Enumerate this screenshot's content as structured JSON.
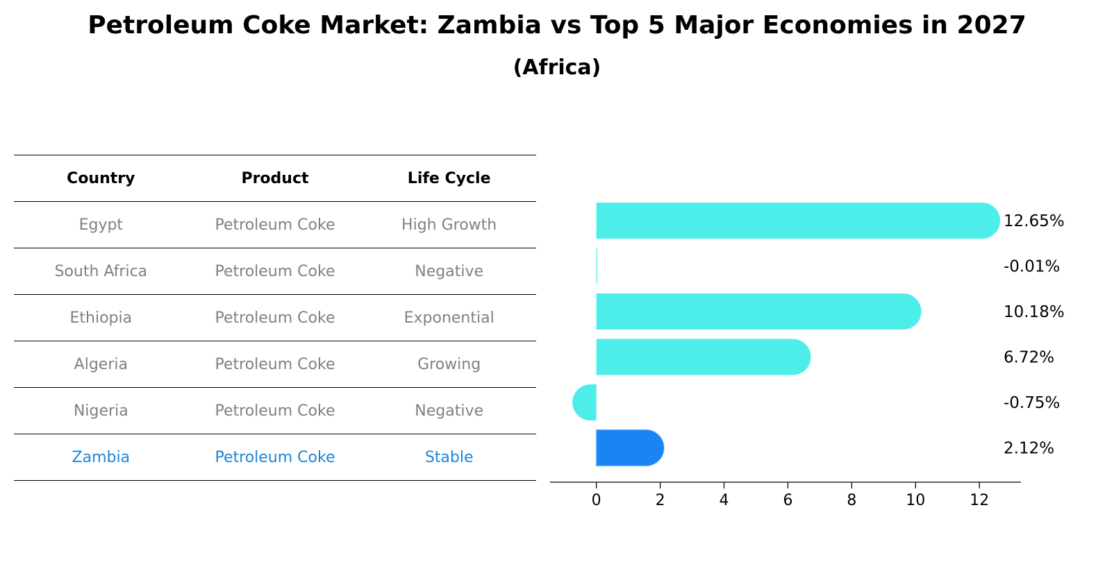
{
  "header": {
    "title": "Petroleum Coke Market: Zambia vs Top 5 Major Economies in 2027",
    "subtitle": "(Africa)"
  },
  "table": {
    "columns": [
      "Country",
      "Product",
      "Life Cycle"
    ],
    "rows": [
      {
        "country": "Egypt",
        "product": "Petroleum Coke",
        "life_cycle": "High Growth"
      },
      {
        "country": "South Africa",
        "product": "Petroleum Coke",
        "life_cycle": "Negative"
      },
      {
        "country": "Ethiopia",
        "product": "Petroleum Coke",
        "life_cycle": "Exponential"
      },
      {
        "country": "Algeria",
        "product": "Petroleum Coke",
        "life_cycle": "Growing"
      },
      {
        "country": "Nigeria",
        "product": "Petroleum Coke",
        "life_cycle": "Negative"
      },
      {
        "country": "Zambia",
        "product": "Petroleum Coke",
        "life_cycle": "Stable"
      }
    ]
  },
  "colors": {
    "bar": "#4deeea",
    "highlight": "#1a85f2",
    "highlight_text": "#1a85d6",
    "muted_text": "#808080"
  },
  "chart_data": {
    "type": "bar",
    "orientation": "horizontal",
    "categories": [
      "Egypt",
      "South Africa",
      "Ethiopia",
      "Algeria",
      "Nigeria",
      "Zambia"
    ],
    "values": [
      12.65,
      -0.01,
      10.18,
      6.72,
      -0.75,
      2.12
    ],
    "value_labels": [
      "12.65%",
      "-0.01%",
      "10.18%",
      "6.72%",
      "-0.75%",
      "2.12%"
    ],
    "highlight_category": "Zambia",
    "xlim": [
      -1.45,
      13.3
    ],
    "xticks": [
      0,
      2,
      4,
      6,
      8,
      10,
      12
    ],
    "xtick_labels": [
      "0",
      "2",
      "4",
      "6",
      "8",
      "10",
      "12"
    ],
    "xlabel": "",
    "ylabel": "",
    "grid": false
  }
}
